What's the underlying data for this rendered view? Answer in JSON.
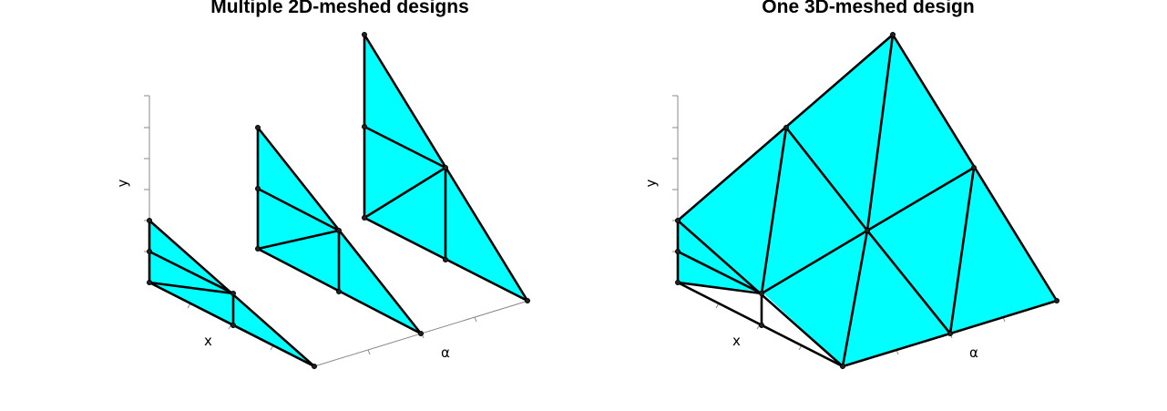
{
  "panels": [
    {
      "title": "Multiple 2D-meshed designs",
      "x_label": "x",
      "y_label": "y",
      "alpha_label": "α"
    },
    {
      "title": "One 3D-meshed design",
      "x_label": "x",
      "y_label": "y",
      "alpha_label": "α"
    }
  ],
  "colors": {
    "face": "#00FFFF",
    "edge": "#000000",
    "axis": "#888888",
    "background": "#FFFFFF"
  }
}
